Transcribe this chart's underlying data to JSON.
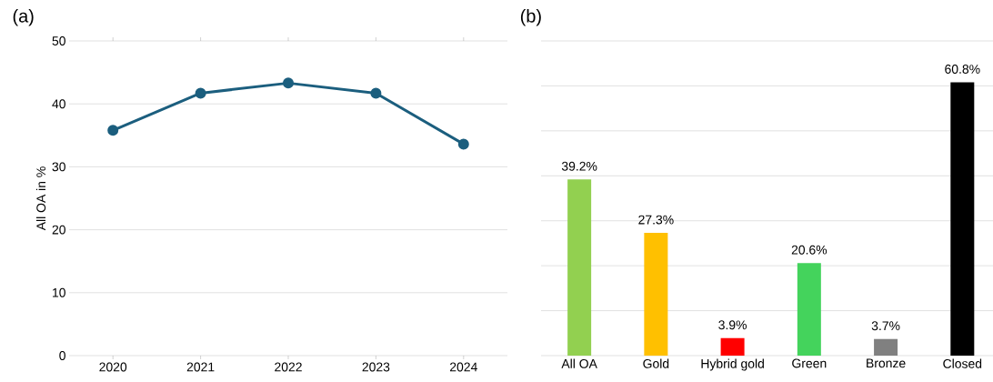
{
  "chart_data": [
    {
      "type": "line",
      "title": "(a)",
      "ylabel": "All OA in %",
      "x": [
        2020,
        2021,
        2022,
        2023,
        2024
      ],
      "series": [
        {
          "color": "#1b5e7e",
          "values": [
            35.8,
            41.7,
            43.3,
            41.7,
            33.6
          ]
        }
      ],
      "xlim": [
        2019.5,
        2024.5
      ],
      "xticks": [
        2020,
        2021,
        2022,
        2023,
        2024
      ],
      "ylim": [
        0,
        50
      ],
      "yticks": [
        0,
        10,
        20,
        30,
        40,
        50
      ],
      "grid": "y",
      "marker": "circle"
    },
    {
      "type": "bar",
      "title": "(b)",
      "categories": [
        "All OA",
        "Gold",
        "Hybrid gold",
        "Green",
        "Bronze",
        "Closed"
      ],
      "values": [
        39.2,
        27.3,
        3.9,
        20.6,
        3.7,
        60.8
      ],
      "colors": [
        "#92d050",
        "#ffc000",
        "#ff0000",
        "#44d35c",
        "#808080",
        "#000000"
      ],
      "value_labels": [
        "39.2%",
        "27.3%",
        "3.9%",
        "20.6%",
        "3.7%",
        "60.8%"
      ],
      "ylim": [
        0,
        70
      ],
      "yticks": [
        {
          "value": 0,
          "label": null
        },
        {
          "value": 10,
          "label": null
        },
        {
          "value": 20,
          "label": null
        },
        {
          "value": 30,
          "label": null
        },
        {
          "value": 40,
          "label": null
        },
        {
          "value": 50,
          "label": null
        },
        {
          "value": 60,
          "label": null
        },
        {
          "value": 70,
          "label": null
        }
      ],
      "grid": "y",
      "tick_labels": "x"
    }
  ]
}
